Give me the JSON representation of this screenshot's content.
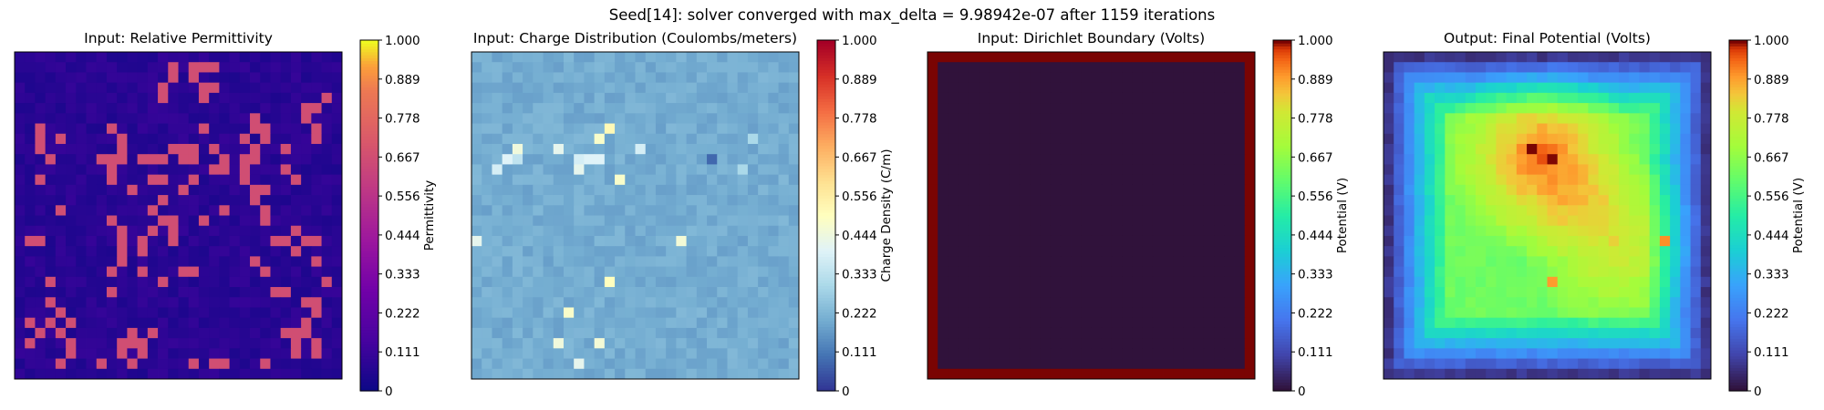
{
  "figure": {
    "suptitle": "Seed[14]: solver converged with max_delta = 9.98942e-07 after 1159 iterations"
  },
  "chart_data": [
    {
      "type": "heatmap",
      "title": "Input: Relative Permittivity",
      "colorbar_label": "Permittivity",
      "colormap": "plasma",
      "grid_size": 32,
      "value_range": [
        0,
        1
      ],
      "background_level": 0.07,
      "high_value": 0.67,
      "high_cells": [
        [
          1,
          15
        ],
        [
          1,
          17
        ],
        [
          1,
          18
        ],
        [
          1,
          19
        ],
        [
          2,
          15
        ],
        [
          2,
          17
        ],
        [
          3,
          14
        ],
        [
          3,
          18
        ],
        [
          3,
          19
        ],
        [
          4,
          14
        ],
        [
          4,
          18
        ],
        [
          4,
          30
        ],
        [
          5,
          28
        ],
        [
          5,
          29
        ],
        [
          6,
          23
        ],
        [
          6,
          28
        ],
        [
          7,
          2
        ],
        [
          7,
          9
        ],
        [
          7,
          18
        ],
        [
          7,
          23
        ],
        [
          7,
          24
        ],
        [
          7,
          29
        ],
        [
          8,
          2
        ],
        [
          8,
          4
        ],
        [
          8,
          10
        ],
        [
          8,
          22
        ],
        [
          8,
          24
        ],
        [
          8,
          29
        ],
        [
          9,
          2
        ],
        [
          9,
          10
        ],
        [
          9,
          15
        ],
        [
          9,
          16
        ],
        [
          9,
          17
        ],
        [
          9,
          19
        ],
        [
          9,
          23
        ],
        [
          9,
          26
        ],
        [
          10,
          3
        ],
        [
          10,
          8
        ],
        [
          10,
          9
        ],
        [
          10,
          10
        ],
        [
          10,
          12
        ],
        [
          10,
          13
        ],
        [
          10,
          14
        ],
        [
          10,
          16
        ],
        [
          10,
          17
        ],
        [
          10,
          20
        ],
        [
          10,
          22
        ],
        [
          10,
          23
        ],
        [
          11,
          9
        ],
        [
          11,
          19
        ],
        [
          11,
          20
        ],
        [
          11,
          22
        ],
        [
          11,
          26
        ],
        [
          12,
          2
        ],
        [
          12,
          9
        ],
        [
          12,
          13
        ],
        [
          12,
          14
        ],
        [
          12,
          17
        ],
        [
          12,
          22
        ],
        [
          12,
          27
        ],
        [
          13,
          11
        ],
        [
          13,
          16
        ],
        [
          13,
          23
        ],
        [
          13,
          24
        ],
        [
          14,
          14
        ],
        [
          14,
          23
        ],
        [
          15,
          4
        ],
        [
          15,
          13
        ],
        [
          15,
          20
        ],
        [
          15,
          24
        ],
        [
          16,
          9
        ],
        [
          16,
          14
        ],
        [
          16,
          15
        ],
        [
          16,
          18
        ],
        [
          16,
          24
        ],
        [
          17,
          10
        ],
        [
          17,
          13
        ],
        [
          17,
          15
        ],
        [
          17,
          27
        ],
        [
          18,
          1
        ],
        [
          18,
          2
        ],
        [
          18,
          10
        ],
        [
          18,
          12
        ],
        [
          18,
          15
        ],
        [
          18,
          25
        ],
        [
          18,
          26
        ],
        [
          18,
          28
        ],
        [
          18,
          29
        ],
        [
          19,
          10
        ],
        [
          19,
          12
        ],
        [
          19,
          27
        ],
        [
          20,
          10
        ],
        [
          20,
          23
        ],
        [
          20,
          29
        ],
        [
          21,
          9
        ],
        [
          21,
          12
        ],
        [
          21,
          16
        ],
        [
          21,
          17
        ],
        [
          21,
          24
        ],
        [
          22,
          3
        ],
        [
          22,
          14
        ],
        [
          22,
          30
        ],
        [
          23,
          9
        ],
        [
          23,
          25
        ],
        [
          23,
          26
        ],
        [
          24,
          3
        ],
        [
          24,
          28
        ],
        [
          24,
          29
        ],
        [
          25,
          4
        ],
        [
          25,
          29
        ],
        [
          26,
          1
        ],
        [
          26,
          3
        ],
        [
          26,
          5
        ],
        [
          26,
          28
        ],
        [
          27,
          2
        ],
        [
          27,
          4
        ],
        [
          27,
          11
        ],
        [
          27,
          13
        ],
        [
          27,
          26
        ],
        [
          27,
          27
        ],
        [
          27,
          28
        ],
        [
          28,
          1
        ],
        [
          28,
          5
        ],
        [
          28,
          10
        ],
        [
          28,
          11
        ],
        [
          28,
          12
        ],
        [
          28,
          27
        ],
        [
          28,
          29
        ],
        [
          29,
          5
        ],
        [
          29,
          10
        ],
        [
          29,
          12
        ],
        [
          29,
          27
        ],
        [
          29,
          29
        ],
        [
          30,
          4
        ],
        [
          30,
          8
        ],
        [
          30,
          11
        ],
        [
          30,
          17
        ],
        [
          30,
          19
        ],
        [
          30,
          20
        ],
        [
          30,
          24
        ]
      ],
      "colorbar_ticks": [
        "0",
        "0.111",
        "0.222",
        "0.333",
        "0.444",
        "0.556",
        "0.667",
        "0.778",
        "0.889",
        "1.000"
      ]
    },
    {
      "type": "heatmap",
      "title": "Input: Charge Distribution (Coulombs/meters)",
      "colorbar_label": "Charge Density (C/m)",
      "colormap": "RdYlBu_r",
      "grid_size": 32,
      "value_range": [
        0,
        1
      ],
      "background_level": 0.2,
      "hot_cells": [
        [
          7,
          13,
          0.52
        ],
        [
          8,
          12,
          0.48
        ],
        [
          9,
          4,
          0.45
        ],
        [
          9,
          8,
          0.42
        ],
        [
          9,
          16,
          0.38
        ],
        [
          10,
          3,
          0.4
        ],
        [
          10,
          10,
          0.38
        ],
        [
          10,
          11,
          0.4
        ],
        [
          10,
          12,
          0.4
        ],
        [
          11,
          2,
          0.38
        ],
        [
          11,
          10,
          0.42
        ],
        [
          12,
          14,
          0.48
        ],
        [
          18,
          0,
          0.42
        ],
        [
          18,
          20,
          0.46
        ],
        [
          22,
          13,
          0.5
        ],
        [
          25,
          9,
          0.48
        ],
        [
          28,
          8,
          0.45
        ],
        [
          28,
          12,
          0.46
        ],
        [
          30,
          10,
          0.42
        ],
        [
          10,
          23,
          0.08
        ],
        [
          10,
          4,
          0.34
        ],
        [
          8,
          27,
          0.3
        ],
        [
          11,
          26,
          0.3
        ],
        [
          7,
          13,
          0.52
        ]
      ],
      "colorbar_ticks": [
        "0",
        "0.111",
        "0.222",
        "0.333",
        "0.444",
        "0.556",
        "0.667",
        "0.778",
        "0.889",
        "1.000"
      ]
    },
    {
      "type": "heatmap",
      "title": "Input: Dirichlet Boundary (Volts)",
      "colorbar_label": "Potential (V)",
      "colormap": "turbo",
      "grid_size": 32,
      "value_range": [
        0,
        1
      ],
      "interior_value": 0.0,
      "boundary_value": 1.0,
      "colorbar_ticks": [
        "0",
        "0.111",
        "0.222",
        "0.333",
        "0.444",
        "0.556",
        "0.667",
        "0.778",
        "0.889",
        "1.000"
      ]
    },
    {
      "type": "heatmap",
      "title": "Output: Final Potential (Volts)",
      "colorbar_label": "Potential (V)",
      "colormap": "turbo",
      "grid_size": 32,
      "value_range": [
        0,
        1
      ],
      "edge_value": 0.07,
      "peak_center": [
        10,
        15
      ],
      "peak_value": 1.0,
      "hot_spots": [
        [
          18,
          27,
          0.9
        ],
        [
          22,
          16,
          0.88
        ],
        [
          9,
          14,
          1.0
        ],
        [
          10,
          16,
          1.0
        ]
      ],
      "colorbar_ticks": [
        "0",
        "0.111",
        "0.222",
        "0.333",
        "0.444",
        "0.556",
        "0.667",
        "0.778",
        "0.889",
        "1.000"
      ]
    }
  ]
}
